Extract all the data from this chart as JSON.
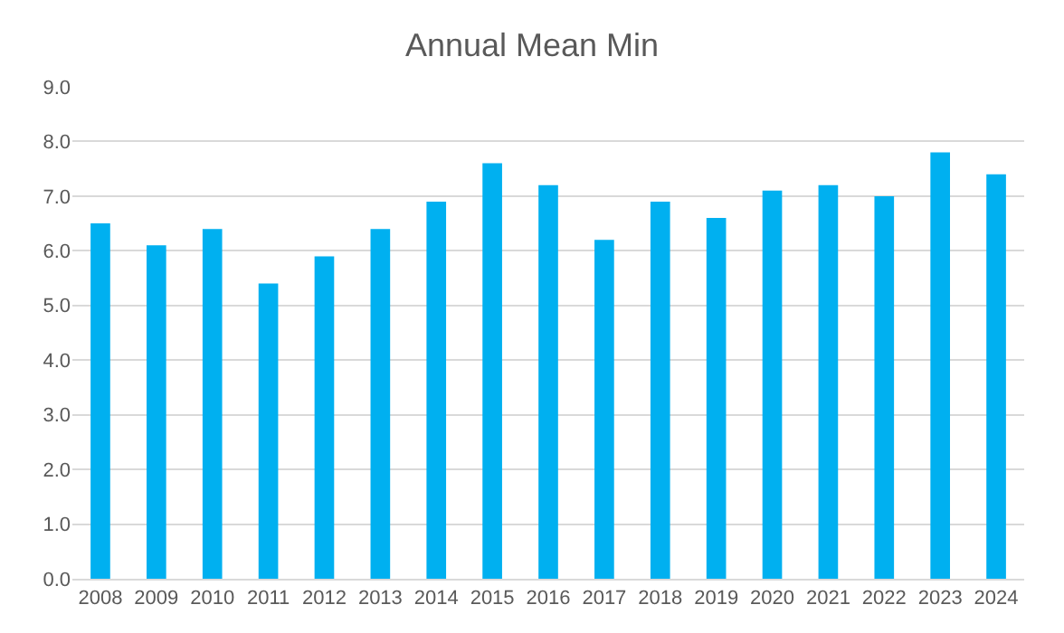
{
  "chart_data": {
    "type": "bar",
    "title": "Annual Mean Min",
    "categories": [
      "2008",
      "2009",
      "2010",
      "2011",
      "2012",
      "2013",
      "2014",
      "2015",
      "2016",
      "2017",
      "2018",
      "2019",
      "2020",
      "2021",
      "2022",
      "2023",
      "2024"
    ],
    "values": [
      6.5,
      6.1,
      6.4,
      5.4,
      5.9,
      6.4,
      6.9,
      7.6,
      7.2,
      6.2,
      6.9,
      6.6,
      7.1,
      7.2,
      7.0,
      7.8,
      7.4
    ],
    "color": "#00b0f0",
    "ylim": [
      0,
      9
    ],
    "yticks": [
      {
        "value": 0,
        "label": "0.0"
      },
      {
        "value": 1,
        "label": "1.0"
      },
      {
        "value": 2,
        "label": "2.0"
      },
      {
        "value": 3,
        "label": "3.0"
      },
      {
        "value": 4,
        "label": "4.0"
      },
      {
        "value": 5,
        "label": "5.0"
      },
      {
        "value": 6,
        "label": "6.0"
      },
      {
        "value": 7,
        "label": "7.0"
      },
      {
        "value": 8,
        "label": "8.0"
      },
      {
        "value": 9,
        "label": "9.0"
      }
    ],
    "grid": "y"
  }
}
